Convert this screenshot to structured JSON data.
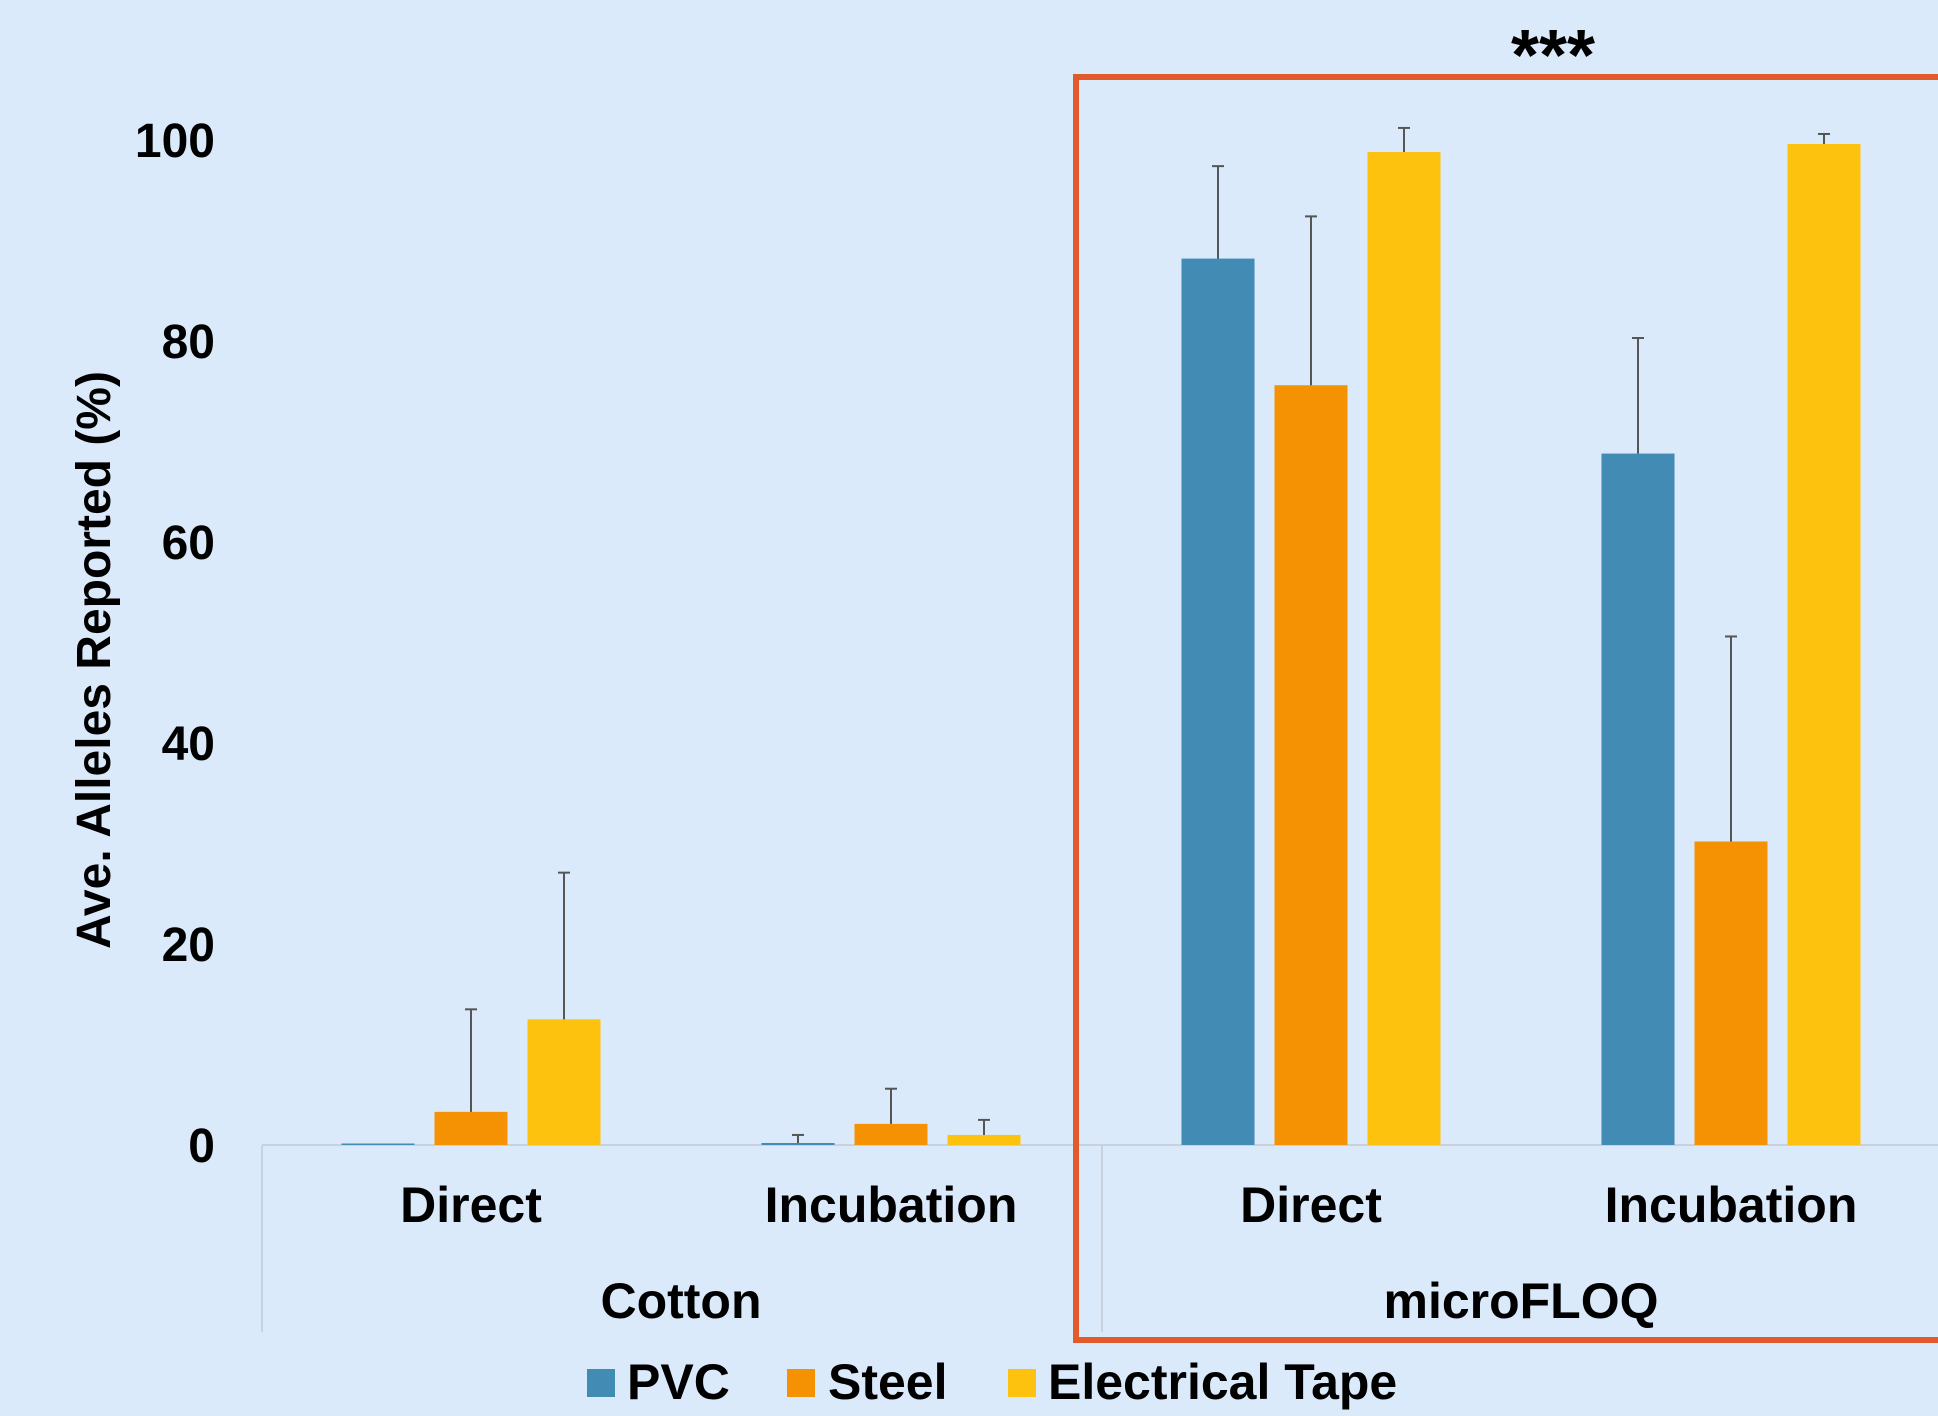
{
  "chart_data": {
    "type": "bar",
    "title": "",
    "xlabel": "",
    "ylabel": "Ave. Alleles Reported (%)",
    "ylim": [
      0,
      100
    ],
    "yticks": [
      "0",
      "20",
      "40",
      "60",
      "80",
      "100"
    ],
    "grid": false,
    "legend_position": "bottom",
    "groups": [
      {
        "label": "Cotton",
        "categories": [
          "Direct",
          "Incubation"
        ]
      },
      {
        "label": "microFLOQ",
        "categories": [
          "Direct",
          "Incubation"
        ]
      }
    ],
    "categories": [
      "Direct",
      "Incubation",
      "Direct",
      "Incubation"
    ],
    "series": [
      {
        "name": "PVC",
        "color": "#428bb5",
        "values": [
          0,
          0.2,
          88.2,
          68.8
        ],
        "errors": [
          0,
          0.8,
          9.2,
          11.5
        ]
      },
      {
        "name": "Steel",
        "color": "#f59203",
        "values": [
          3.3,
          2.1,
          75.6,
          30.2
        ],
        "errors": [
          10.2,
          3.5,
          16.8,
          20.4
        ]
      },
      {
        "name": "Electrical Tape",
        "color": "#fdc20e",
        "values": [
          12.5,
          1.0,
          98.8,
          99.6
        ],
        "errors": [
          14.6,
          1.5,
          2.4,
          1.0
        ]
      }
    ],
    "annotations": [
      {
        "text": "***",
        "target_group": "microFLOQ",
        "box_color": "#e05a2b"
      }
    ]
  }
}
